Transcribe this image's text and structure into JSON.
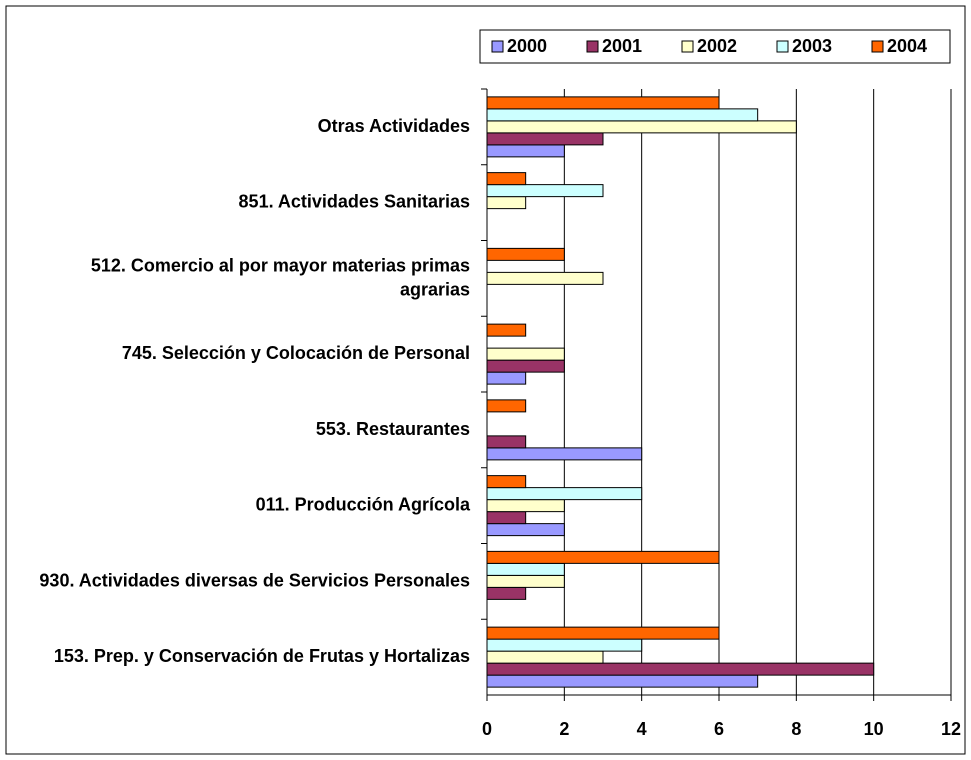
{
  "chart_data": {
    "type": "bar",
    "orientation": "horizontal",
    "categories": [
      "Otras Actividades",
      "851. Actividades Sanitarias",
      "512. Comercio al por mayor materias primas agrarias",
      "745. Selección y Colocación de Personal",
      "553. Restaurantes",
      "011. Producción Agrícola",
      "930. Actividades diversas de Servicios Personales",
      "153. Prep. y Conservación de Frutas y Hortalizas"
    ],
    "series": [
      {
        "name": "2000",
        "color": "#9999ff",
        "values": [
          2,
          0,
          0,
          1,
          4,
          2,
          0,
          7
        ]
      },
      {
        "name": "2001",
        "color": "#993366",
        "values": [
          3,
          0,
          0,
          2,
          1,
          1,
          1,
          10
        ]
      },
      {
        "name": "2002",
        "color": "#ffffcc",
        "values": [
          8,
          1,
          3,
          2,
          0,
          2,
          2,
          3
        ]
      },
      {
        "name": "2003",
        "color": "#ccffff",
        "values": [
          7,
          3,
          0,
          0,
          0,
          4,
          2,
          4
        ]
      },
      {
        "name": "2004",
        "color": "#ff6600",
        "values": [
          6,
          1,
          2,
          1,
          1,
          1,
          6,
          6
        ]
      }
    ],
    "xlim": [
      0,
      12
    ],
    "xticks": [
      0,
      2,
      4,
      6,
      8,
      10,
      12
    ],
    "grid": true,
    "legend": "top-right"
  }
}
